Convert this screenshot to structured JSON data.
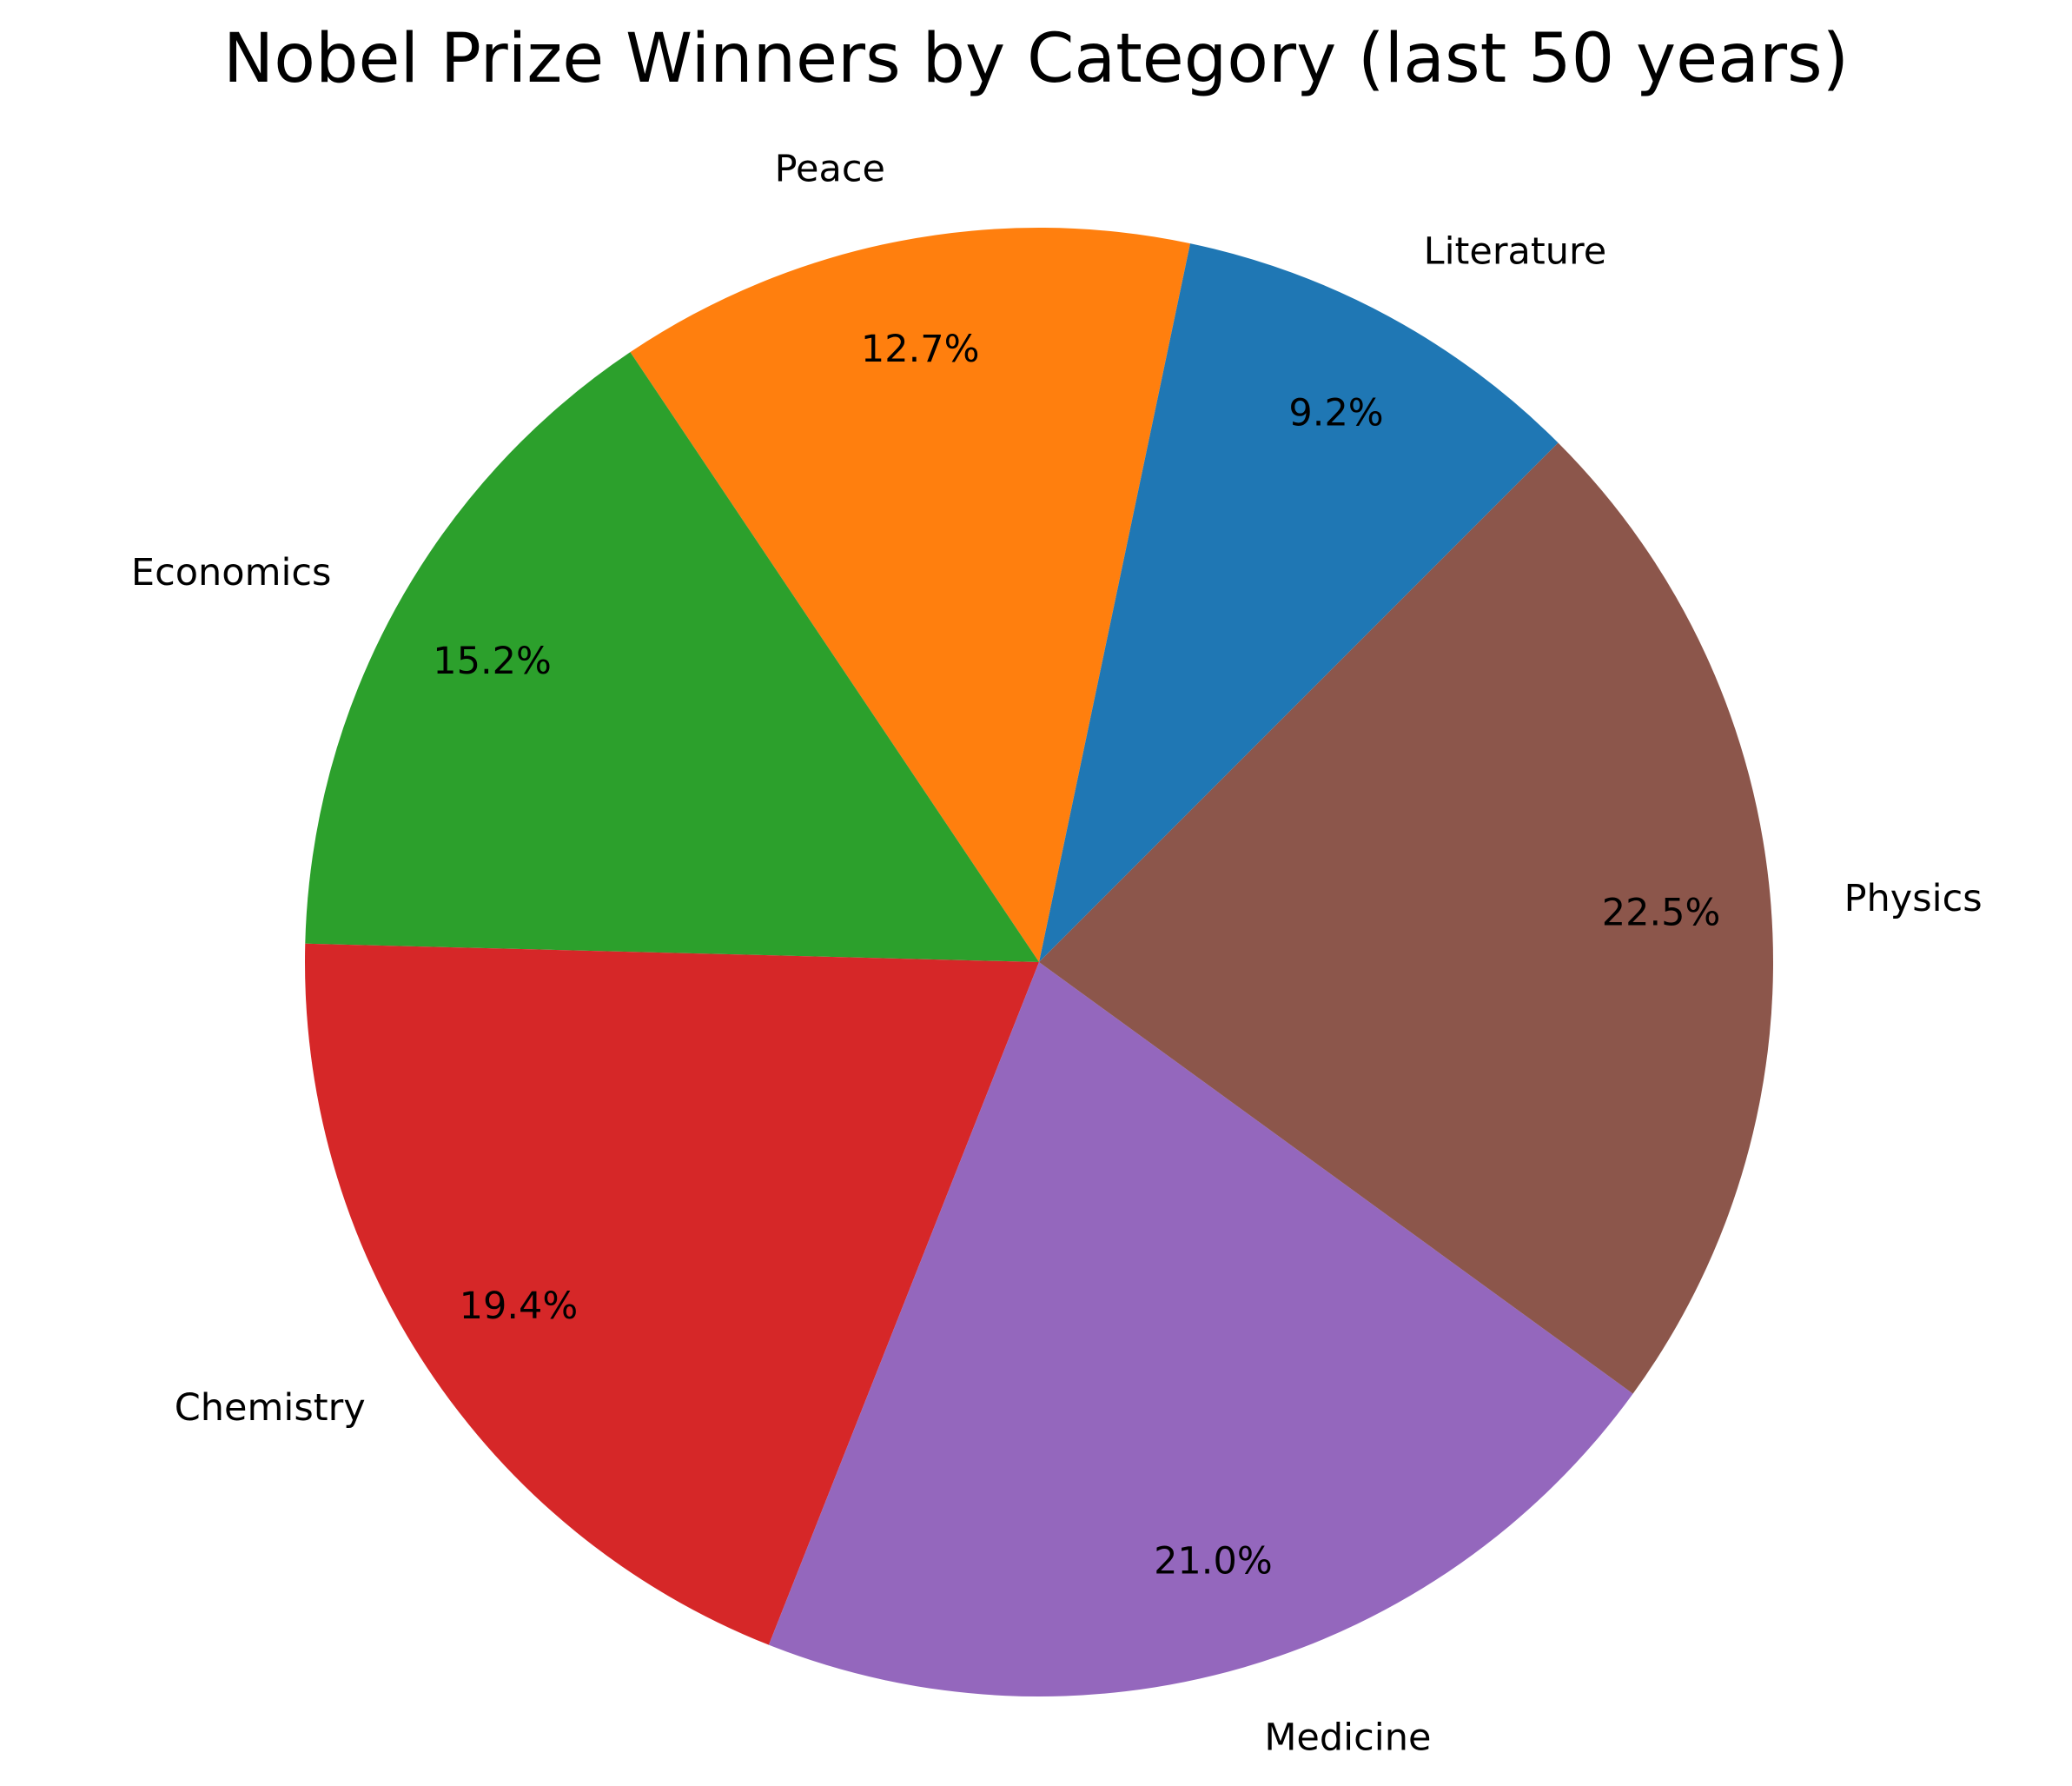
{
  "chart_data": {
    "type": "pie",
    "title": "Nobel Prize Winners by Category (last 50 years)",
    "slices": [
      {
        "label": "Literature",
        "percent": 9.2,
        "color": "#1f77b4"
      },
      {
        "label": "Peace",
        "percent": 12.7,
        "color": "#ff7f0e"
      },
      {
        "label": "Economics",
        "percent": 15.2,
        "color": "#2ca02c"
      },
      {
        "label": "Chemistry",
        "percent": 19.4,
        "color": "#d62728"
      },
      {
        "label": "Medicine",
        "percent": 21.0,
        "color": "#9467bd"
      },
      {
        "label": "Physics",
        "percent": 22.5,
        "color": "#8c564b"
      }
    ],
    "percent_format": "{:.1f}%",
    "start_angle_deg": 45,
    "direction": "counterclockwise",
    "legend": "none"
  }
}
